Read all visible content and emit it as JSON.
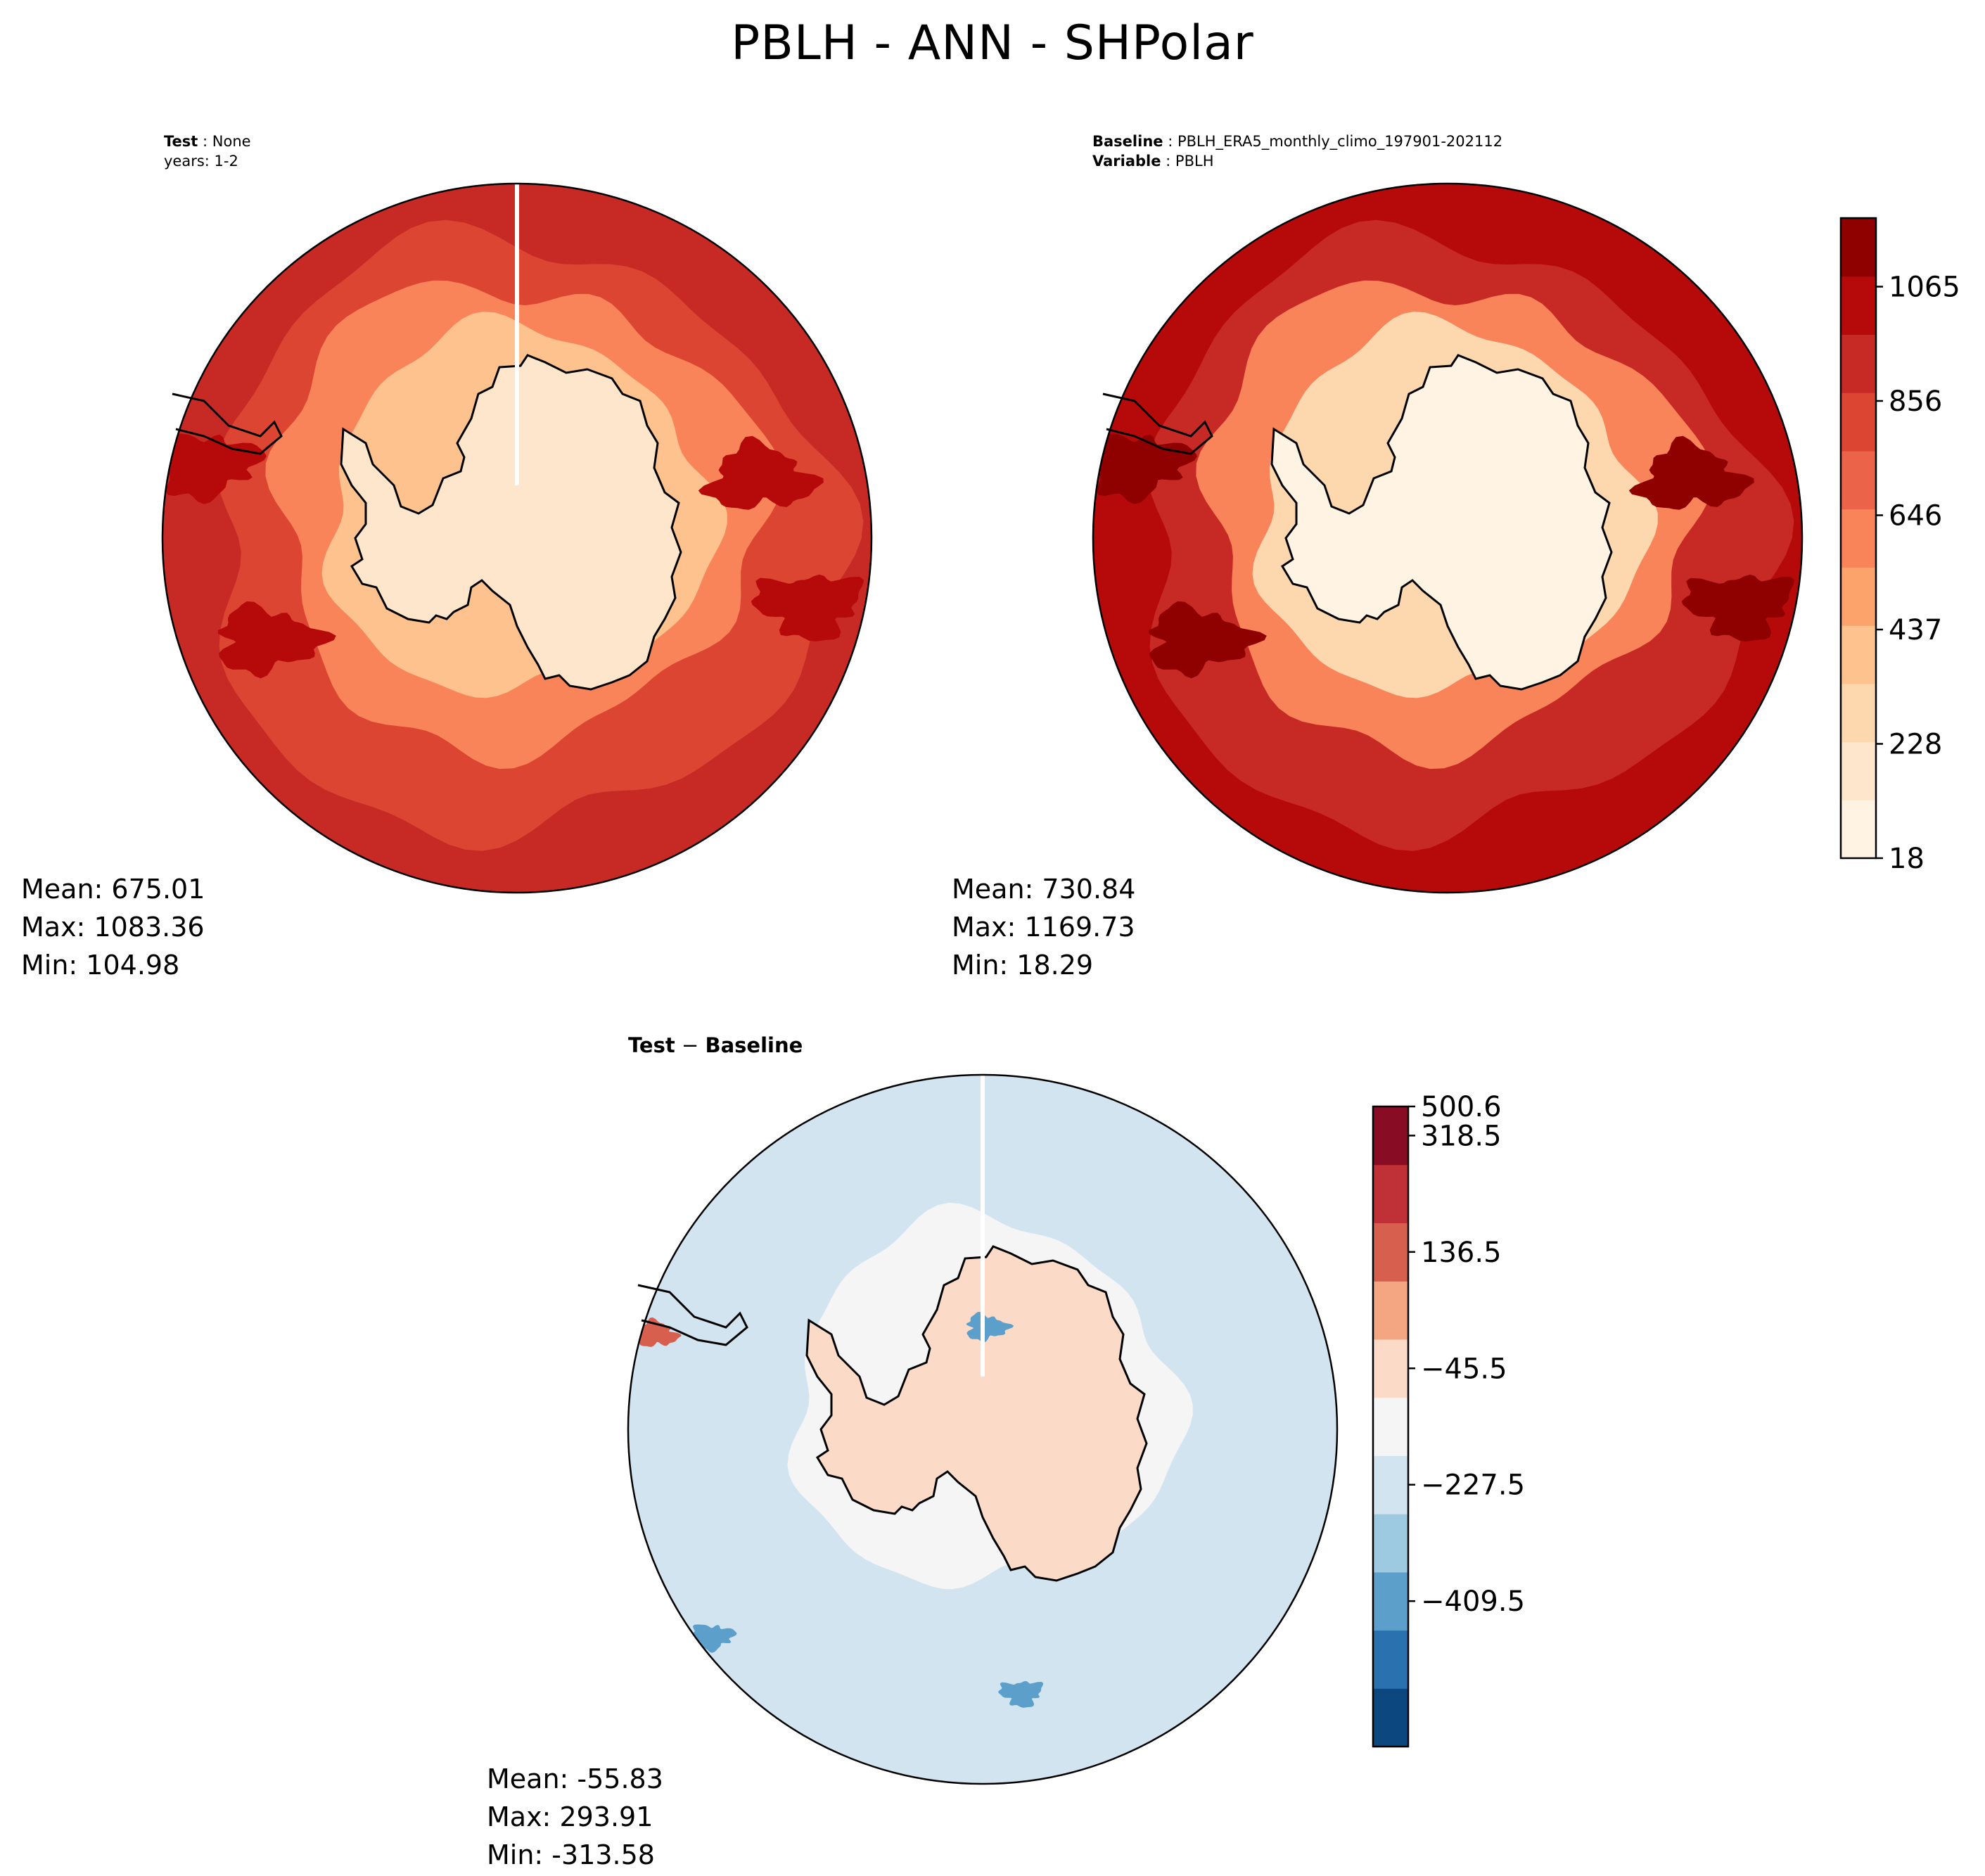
{
  "figure": {
    "title": "PBLH - ANN - SHPolar"
  },
  "panels": {
    "test": {
      "meta": {
        "label1": "Test",
        "value1": "None",
        "line2": "years: 1-2"
      },
      "stats": {
        "mean": "Mean: 675.01",
        "max": "Max: 1083.36",
        "min": "Min: 104.98"
      }
    },
    "baseline": {
      "meta": {
        "label1": "Baseline",
        "value1": "PBLH_ERA5_monthly_climo_197901-202112",
        "label2": "Variable",
        "value2": "PBLH"
      },
      "stats": {
        "mean": "Mean: 730.84",
        "max": "Max: 1169.73",
        "min": "Min: 18.29"
      }
    },
    "diff": {
      "meta": {
        "label1": "Test",
        "sep": " − ",
        "label2": "Baseline"
      },
      "stats": {
        "mean": "Mean: -55.83",
        "max": "Max: 293.91",
        "min": "Min: -313.58"
      }
    }
  },
  "chart_data": [
    {
      "type": "heatmap",
      "name": "test",
      "projection": "south-polar-stereographic",
      "levels_cmap": "OrRd",
      "mean": 675.01,
      "max": 1083.36,
      "min": 104.98,
      "zones": {
        "interior": 200,
        "coast": 420,
        "ring": 600,
        "outer": 820,
        "edge": 920,
        "max_area": 1000
      }
    },
    {
      "type": "heatmap",
      "name": "baseline",
      "projection": "south-polar-stereographic",
      "levels_cmap": "OrRd",
      "mean": 730.84,
      "max": 1169.73,
      "min": 18.29,
      "zones": {
        "interior": 120,
        "coast": 320,
        "ring": 560,
        "outer": 900,
        "edge": 1000,
        "max_area": 1120
      }
    },
    {
      "type": "heatmap",
      "name": "difference",
      "projection": "south-polar-stereographic",
      "levels_cmap": "RdBu_r",
      "mean": -55.83,
      "max": 293.91,
      "min": -313.58,
      "zones": {
        "interior": 80,
        "coast": 0,
        "ring": -60,
        "outer": -130,
        "edge": -100,
        "max_area": 250,
        "min_area": -300
      }
    }
  ],
  "colorbars": [
    {
      "name": "absolute",
      "vmin": 18,
      "vmax": 1169.73,
      "ticks": [
        "18",
        "228",
        "437",
        "646",
        "856",
        "1065"
      ],
      "colors": [
        "#fff3e3",
        "#fee6cc",
        "#fdd7ad",
        "#fdc28d",
        "#fca36b",
        "#f9845a",
        "#eb6349",
        "#db4532",
        "#c72a24",
        "#b60a0a",
        "#8f0000"
      ]
    },
    {
      "name": "difference",
      "vmin": -500.6,
      "vmax": 500.6,
      "ticks": [
        "−409.5",
        "−227.5",
        "−45.5",
        "136.5",
        "318.5",
        "500.6"
      ],
      "colors": [
        "#0d4780",
        "#2a71b0",
        "#5c9fcb",
        "#9ecae1",
        "#d1e4f0",
        "#f5f5f5",
        "#fcdac8",
        "#f4a582",
        "#d6604d",
        "#c03137",
        "#880c24"
      ]
    }
  ]
}
